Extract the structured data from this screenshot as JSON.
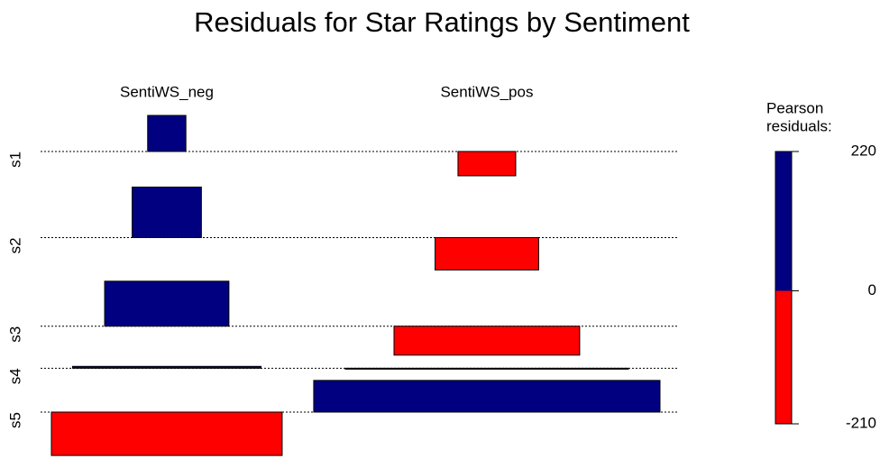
{
  "chart_data": {
    "type": "association",
    "title": "Residuals for Star Ratings by Sentiment",
    "rows": [
      "s1",
      "s2",
      "s3",
      "s4",
      "s5"
    ],
    "series": [
      {
        "name": "SentiWS_neg",
        "values": [
          157,
          220,
          196,
          8,
          -189
        ],
        "expected": [
          18,
          59,
          190,
          437,
          655
        ]
      },
      {
        "name": "SentiWS_pos",
        "values": [
          -106,
          -141,
          -126,
          -4,
          138
        ],
        "expected": [
          41,
          132,
          424,
          986,
          1475
        ]
      }
    ],
    "colors": {
      "positive": "#000080",
      "negative": "#ff0000"
    },
    "legend": {
      "title": [
        "Pearson",
        "residuals:"
      ],
      "lim": [
        -210,
        220
      ],
      "ticks": [
        220,
        0,
        -210
      ]
    }
  }
}
